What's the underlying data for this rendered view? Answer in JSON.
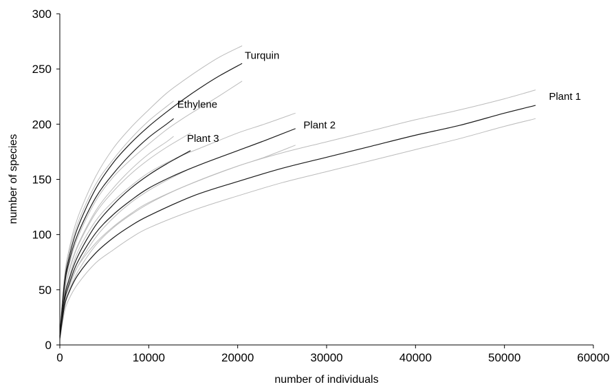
{
  "chart_data": {
    "type": "line",
    "title": "",
    "xlabel": "number of individuals",
    "ylabel": "number of species",
    "xlim": [
      0,
      60000
    ],
    "ylim": [
      0,
      300
    ],
    "xticks": [
      0,
      10000,
      20000,
      30000,
      40000,
      50000,
      60000
    ],
    "yticks": [
      0,
      50,
      100,
      150,
      200,
      250,
      300
    ],
    "grid": false,
    "legend": "none",
    "colors": {
      "main": "#1a1a1a",
      "ci": "#bbbbbb",
      "axis": "#000000"
    },
    "series": [
      {
        "name": "Turquin",
        "label_at": [
          20800,
          259
        ],
        "x": [
          0,
          500,
          1000,
          2000,
          4000,
          6000,
          8000,
          10000,
          12000,
          14000,
          16000,
          18000,
          20500
        ],
        "values": [
          8,
          55,
          78,
          106,
          141,
          165,
          183,
          198,
          211,
          223,
          234,
          244,
          255
        ],
        "lower": [
          6,
          50,
          71,
          97,
          130,
          152,
          168,
          182,
          195,
          206,
          216,
          226,
          239
        ],
        "upper": [
          10,
          60,
          85,
          115,
          152,
          178,
          197,
          213,
          228,
          240,
          251,
          261,
          271
        ]
      },
      {
        "name": "Ethylene",
        "label_at": [
          13200,
          215
        ],
        "x": [
          0,
          500,
          1000,
          2000,
          4000,
          6000,
          8000,
          10000,
          12000,
          12800
        ],
        "values": [
          8,
          52,
          74,
          100,
          133,
          155,
          173,
          188,
          200,
          205
        ],
        "lower": [
          6,
          46,
          66,
          90,
          121,
          142,
          159,
          173,
          184,
          189
        ],
        "upper": [
          10,
          58,
          82,
          110,
          145,
          168,
          187,
          203,
          216,
          221
        ]
      },
      {
        "name": "Plant 3",
        "label_at": [
          14300,
          184
        ],
        "x": [
          0,
          500,
          1000,
          2000,
          4000,
          6000,
          8000,
          10000,
          12000,
          14700
        ],
        "values": [
          7,
          42,
          58,
          80,
          108,
          127,
          142,
          154,
          164,
          176
        ],
        "lower": [
          5,
          36,
          51,
          71,
          97,
          115,
          129,
          140,
          149,
          160
        ],
        "upper": [
          9,
          48,
          65,
          89,
          119,
          139,
          155,
          168,
          179,
          192
        ]
      },
      {
        "name": "Plant 2",
        "label_at": [
          27400,
          196
        ],
        "x": [
          0,
          500,
          1000,
          2000,
          4000,
          6000,
          8000,
          10000,
          13000,
          16000,
          20000,
          23000,
          26500
        ],
        "values": [
          7,
          39,
          54,
          75,
          101,
          118,
          131,
          142,
          154,
          164,
          176,
          185,
          196
        ],
        "lower": [
          5,
          34,
          48,
          66,
          90,
          106,
          118,
          128,
          140,
          150,
          162,
          170,
          181
        ],
        "upper": [
          9,
          44,
          60,
          84,
          112,
          130,
          144,
          156,
          169,
          179,
          192,
          200,
          210
        ]
      },
      {
        "name": "Plant 1",
        "label_at": [
          55000,
          222
        ],
        "x": [
          0,
          500,
          1000,
          2000,
          4000,
          6000,
          8000,
          10000,
          15000,
          20000,
          25000,
          30000,
          35000,
          40000,
          45000,
          50000,
          53500
        ],
        "values": [
          6,
          34,
          47,
          63,
          83,
          97,
          108,
          117,
          135,
          148,
          160,
          170,
          180,
          190,
          199,
          210,
          217
        ],
        "lower": [
          4,
          29,
          41,
          55,
          74,
          86,
          97,
          106,
          122,
          135,
          147,
          157,
          167,
          177,
          187,
          198,
          205
        ],
        "upper": [
          8,
          39,
          53,
          71,
          92,
          107,
          119,
          129,
          147,
          162,
          174,
          184,
          194,
          204,
          213,
          223,
          231
        ]
      }
    ]
  }
}
